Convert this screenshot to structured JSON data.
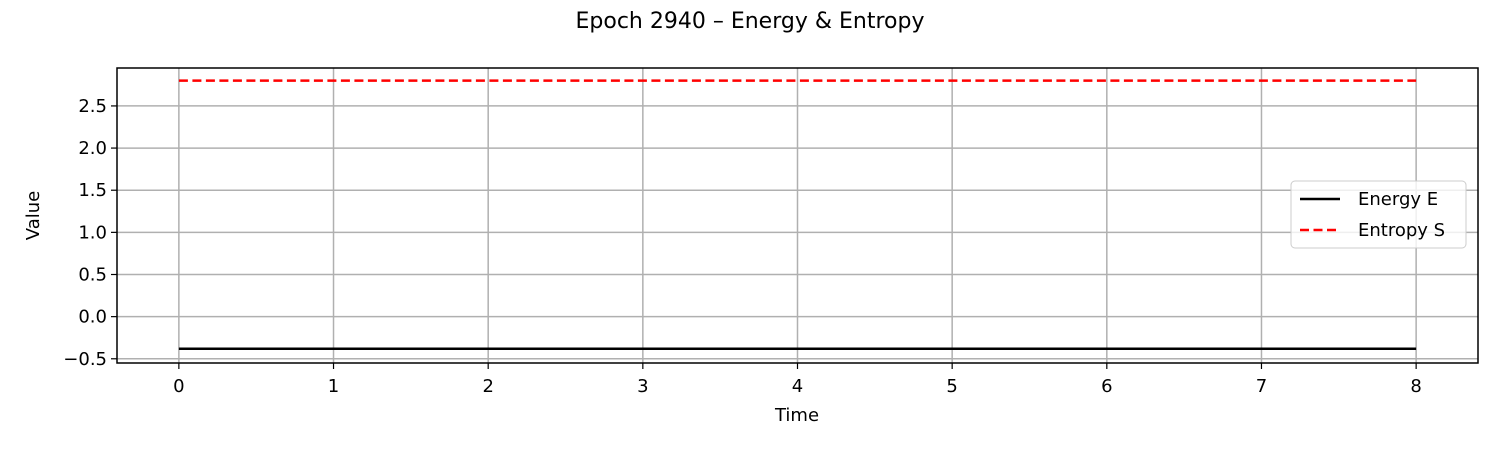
{
  "chart_data": {
    "type": "line",
    "title": "Epoch 2940 – Energy & Entropy",
    "xlabel": "Time",
    "ylabel": "Value",
    "xlim": [
      -0.4,
      8.4
    ],
    "ylim": [
      -0.55,
      2.95
    ],
    "x_ticks": [
      0,
      1,
      2,
      3,
      4,
      5,
      6,
      7,
      8
    ],
    "x_tick_labels": [
      "0",
      "1",
      "2",
      "3",
      "4",
      "5",
      "6",
      "7",
      "8"
    ],
    "y_ticks": [
      -0.5,
      0.0,
      0.5,
      1.0,
      1.5,
      2.0,
      2.5
    ],
    "y_tick_labels": [
      "−0.5",
      "0.0",
      "0.5",
      "1.0",
      "1.5",
      "2.0",
      "2.5"
    ],
    "grid": true,
    "legend_position": "center-right",
    "series": [
      {
        "name": "Energy E",
        "color": "#000000",
        "style": "solid",
        "x": [
          0,
          1,
          2,
          3,
          4,
          5,
          6,
          7,
          8
        ],
        "y": [
          -0.38,
          -0.38,
          -0.38,
          -0.38,
          -0.38,
          -0.38,
          -0.38,
          -0.38,
          -0.38
        ]
      },
      {
        "name": "Entropy S",
        "color": "#ff0000",
        "style": "dashed",
        "x": [
          0,
          1,
          2,
          3,
          4,
          5,
          6,
          7,
          8
        ],
        "y": [
          2.8,
          2.8,
          2.8,
          2.8,
          2.8,
          2.8,
          2.8,
          2.8,
          2.8
        ]
      }
    ]
  }
}
